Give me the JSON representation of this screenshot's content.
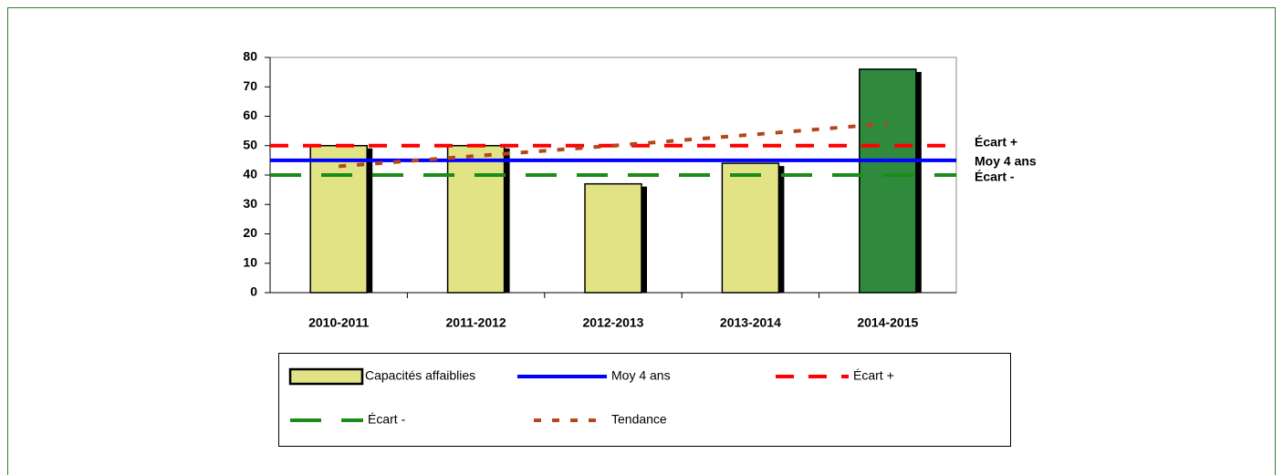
{
  "chart_data": {
    "type": "bar",
    "categories": [
      "2010-2011",
      "2011-2012",
      "2012-2013",
      "2013-2014",
      "2014-2015"
    ],
    "series": [
      {
        "name": "Capacités affaiblies",
        "type": "bar",
        "colors": [
          "#e2e384",
          "#e2e384",
          "#e2e384",
          "#e2e384",
          "#2f8a3e"
        ],
        "color": "#e2e384",
        "values": [
          50,
          50,
          37,
          44,
          76
        ]
      },
      {
        "name": "Moy 4 ans",
        "type": "hline",
        "color": "#0000ff",
        "values": [
          45,
          45,
          45,
          45,
          45
        ]
      },
      {
        "name": "Écart +",
        "type": "hline",
        "color": "#ff0000",
        "dash": "20 16",
        "values": [
          50,
          50,
          50,
          50,
          50
        ]
      },
      {
        "name": "Écart -",
        "type": "hline",
        "color": "#1a8c1a",
        "dash": "34 22",
        "values": [
          40,
          40,
          40,
          40,
          40
        ]
      },
      {
        "name": "Tendance",
        "type": "line",
        "color": "#b5461a",
        "dash": "8 12",
        "values": [
          43,
          46.5,
          50,
          53.7,
          57.5
        ]
      }
    ],
    "ylim": [
      0,
      80
    ],
    "yticks": [
      0,
      10,
      20,
      30,
      40,
      50,
      60,
      70,
      80
    ],
    "grid": false
  }
}
